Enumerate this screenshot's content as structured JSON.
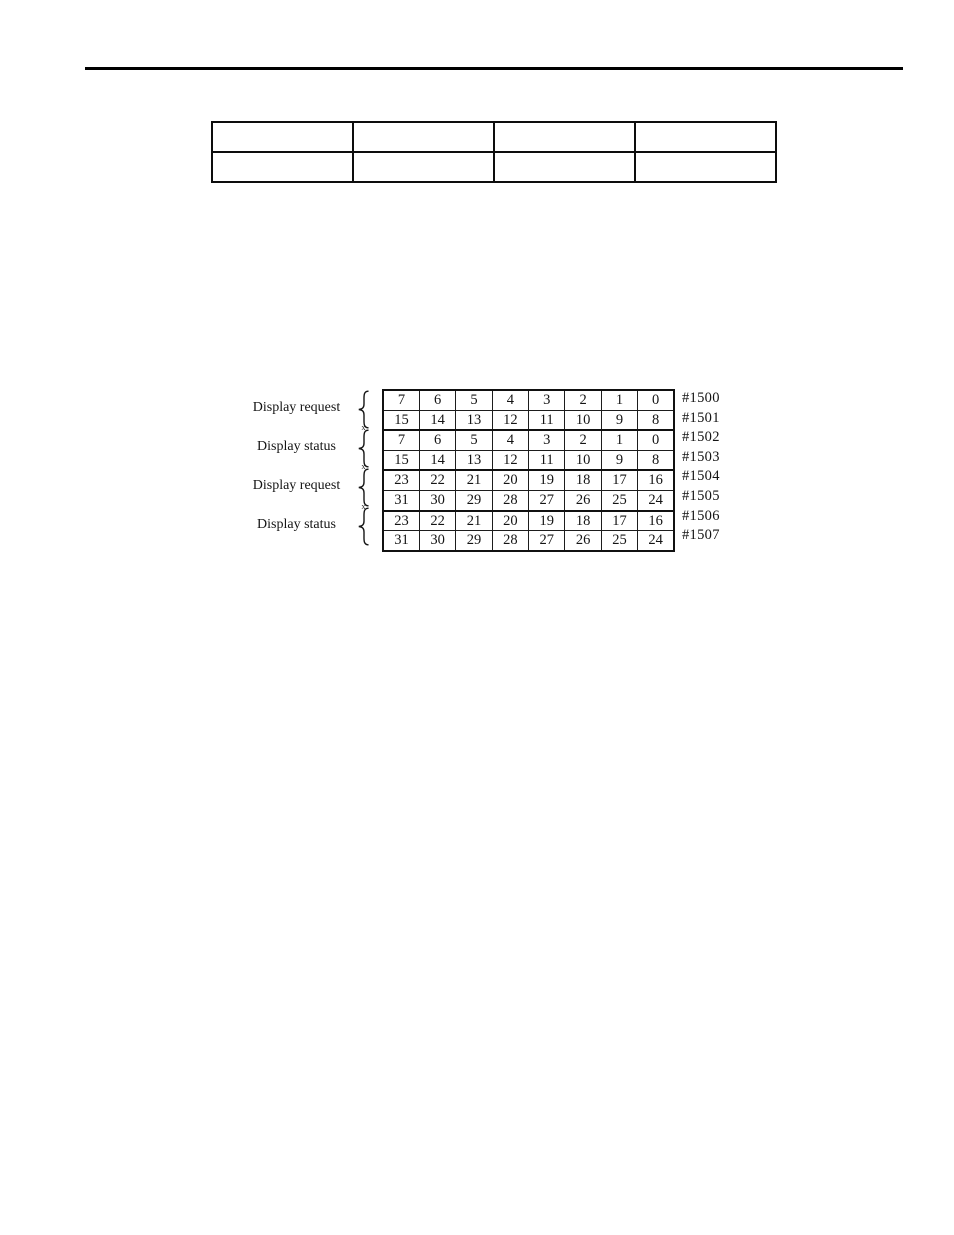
{
  "page": {
    "background": "#ffffff",
    "ink": "#141414",
    "rule_color": "#000000"
  },
  "top_table": {
    "rows": 2,
    "columns": 4
  },
  "bit_map": {
    "junction_mark": "x",
    "groups": [
      {
        "label": "Display request"
      },
      {
        "label": "Display status"
      },
      {
        "label": "Display request"
      },
      {
        "label": "Display status"
      }
    ],
    "rows": [
      {
        "bits": [
          "7",
          "6",
          "5",
          "4",
          "3",
          "2",
          "1",
          "0"
        ],
        "address": "#1500"
      },
      {
        "bits": [
          "15",
          "14",
          "13",
          "12",
          "11",
          "10",
          "9",
          "8"
        ],
        "address": "#1501"
      },
      {
        "bits": [
          "7",
          "6",
          "5",
          "4",
          "3",
          "2",
          "1",
          "0"
        ],
        "address": "#1502"
      },
      {
        "bits": [
          "15",
          "14",
          "13",
          "12",
          "11",
          "10",
          "9",
          "8"
        ],
        "address": "#1503"
      },
      {
        "bits": [
          "23",
          "22",
          "21",
          "20",
          "19",
          "18",
          "17",
          "16"
        ],
        "address": "#1504"
      },
      {
        "bits": [
          "31",
          "30",
          "29",
          "28",
          "27",
          "26",
          "25",
          "24"
        ],
        "address": "#1505"
      },
      {
        "bits": [
          "23",
          "22",
          "21",
          "20",
          "19",
          "18",
          "17",
          "16"
        ],
        "address": "#1506"
      },
      {
        "bits": [
          "31",
          "30",
          "29",
          "28",
          "27",
          "26",
          "25",
          "24"
        ],
        "address": "#1507"
      }
    ]
  }
}
